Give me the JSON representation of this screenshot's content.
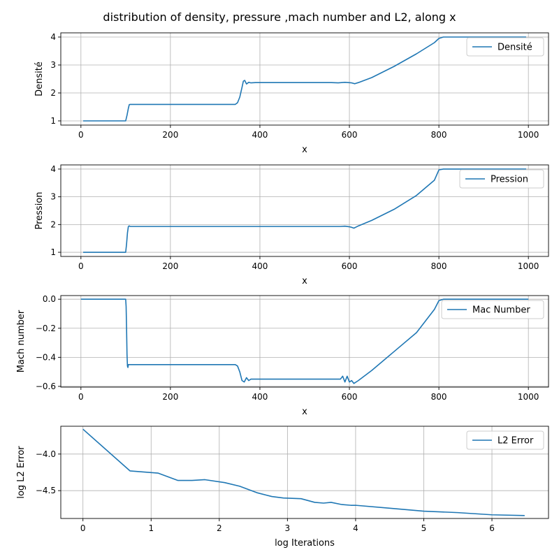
{
  "figure": {
    "title": "distribution of density, pressure ,mach number and L2, along x"
  },
  "colors": {
    "series": "#1f77b4",
    "grid": "#b0b0b0",
    "axis": "#000000"
  },
  "chart_data": [
    {
      "type": "line",
      "xlabel": "x",
      "ylabel": "Densité",
      "xlim": [
        -45,
        1045
      ],
      "ylim": [
        0.85,
        4.15
      ],
      "xticks": [
        0,
        200,
        400,
        600,
        800,
        1000
      ],
      "yticks": [
        1,
        2,
        3,
        4
      ],
      "grid": true,
      "legend_position": "top-right",
      "series": [
        {
          "name": "Densité",
          "x": [
            5,
            100,
            103,
            106,
            108,
            110,
            200,
            300,
            345,
            350,
            355,
            360,
            363,
            366,
            370,
            375,
            380,
            390,
            400,
            500,
            560,
            575,
            590,
            605,
            612,
            620,
            650,
            700,
            750,
            790,
            800,
            810,
            900,
            995
          ],
          "y": [
            1,
            1,
            1.2,
            1.45,
            1.58,
            1.59,
            1.59,
            1.59,
            1.59,
            1.65,
            1.85,
            2.2,
            2.42,
            2.45,
            2.32,
            2.38,
            2.36,
            2.37,
            2.37,
            2.37,
            2.37,
            2.36,
            2.38,
            2.36,
            2.33,
            2.37,
            2.55,
            2.95,
            3.4,
            3.8,
            3.95,
            4,
            4,
            4
          ]
        }
      ]
    },
    {
      "type": "line",
      "xlabel": "x",
      "ylabel": "Pression",
      "xlim": [
        -45,
        1045
      ],
      "ylim": [
        0.85,
        4.15
      ],
      "xticks": [
        0,
        200,
        400,
        600,
        800,
        1000
      ],
      "yticks": [
        1,
        2,
        3,
        4
      ],
      "grid": true,
      "legend_position": "top-right",
      "series": [
        {
          "name": "Pression",
          "x": [
            5,
            100,
            102,
            104,
            106,
            108,
            110,
            200,
            300,
            400,
            500,
            580,
            590,
            600,
            605,
            610,
            620,
            650,
            700,
            750,
            790,
            800,
            810,
            900,
            995
          ],
          "y": [
            1,
            1,
            1.3,
            1.7,
            1.93,
            1.95,
            1.93,
            1.93,
            1.93,
            1.93,
            1.93,
            1.93,
            1.94,
            1.92,
            1.9,
            1.87,
            1.95,
            2.15,
            2.55,
            3.05,
            3.6,
            3.97,
            4,
            4,
            4
          ]
        }
      ]
    },
    {
      "type": "line",
      "xlabel": "x",
      "ylabel": "Mach number",
      "xlim": [
        -45,
        1045
      ],
      "ylim": [
        -0.605,
        0.025
      ],
      "xticks": [
        0,
        200,
        400,
        600,
        800,
        1000
      ],
      "yticks": [
        0.0,
        -0.2,
        -0.4,
        -0.6
      ],
      "ytick_labels": [
        "0.0",
        "−0.2",
        "−0.4",
        "−0.6"
      ],
      "grid": true,
      "legend_position": "top-right",
      "series": [
        {
          "name": "Mac Number",
          "x": [
            0,
            100,
            101,
            102,
            103,
            104,
            105,
            106,
            108,
            110,
            200,
            300,
            345,
            350,
            355,
            360,
            365,
            370,
            375,
            380,
            390,
            400,
            500,
            580,
            585,
            590,
            595,
            600,
            605,
            610,
            620,
            650,
            700,
            750,
            790,
            800,
            810,
            900,
            1000
          ],
          "y": [
            0,
            0,
            -0.05,
            -0.2,
            -0.38,
            -0.46,
            -0.47,
            -0.45,
            -0.45,
            -0.45,
            -0.45,
            -0.45,
            -0.45,
            -0.46,
            -0.5,
            -0.56,
            -0.57,
            -0.54,
            -0.56,
            -0.55,
            -0.55,
            -0.55,
            -0.55,
            -0.55,
            -0.53,
            -0.57,
            -0.53,
            -0.57,
            -0.56,
            -0.58,
            -0.56,
            -0.49,
            -0.36,
            -0.23,
            -0.07,
            -0.01,
            0,
            0,
            0
          ]
        }
      ]
    },
    {
      "type": "line",
      "xlabel": "log Iterations",
      "ylabel": "log L2 Error",
      "xlim": [
        -0.325,
        6.83
      ],
      "ylim": [
        -4.88,
        -3.62
      ],
      "xticks": [
        0,
        1,
        2,
        3,
        4,
        5,
        6
      ],
      "yticks": [
        -4.0,
        -4.5
      ],
      "ytick_labels": [
        "−4.0",
        "−4.5"
      ],
      "grid": true,
      "legend_position": "top-right",
      "series": [
        {
          "name": "L2 Error",
          "x": [
            0,
            0.69,
            1.1,
            1.39,
            1.6,
            1.79,
            2.08,
            2.3,
            2.56,
            2.77,
            2.94,
            3.2,
            3.4,
            3.53,
            3.64,
            3.8,
            3.93,
            4.0,
            4.5,
            5.0,
            5.5,
            6.0,
            6.48
          ],
          "y": [
            -3.66,
            -4.23,
            -4.26,
            -4.36,
            -4.36,
            -4.35,
            -4.39,
            -4.44,
            -4.53,
            -4.58,
            -4.6,
            -4.61,
            -4.66,
            -4.67,
            -4.66,
            -4.69,
            -4.7,
            -4.7,
            -4.74,
            -4.78,
            -4.8,
            -4.83,
            -4.84
          ]
        }
      ]
    }
  ]
}
